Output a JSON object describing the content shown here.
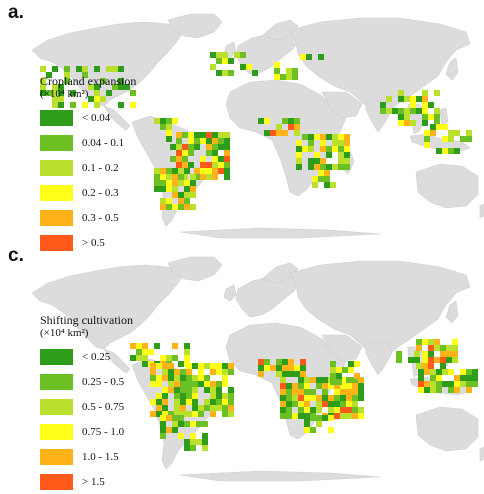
{
  "panels": [
    {
      "letter": "a.",
      "legend": {
        "title": "Cropland expansion",
        "units": "(×10⁴ km²)",
        "items": [
          {
            "label": "< 0.04",
            "color": "#2e9e1a"
          },
          {
            "label": "0.04 - 0.1",
            "color": "#6cc024"
          },
          {
            "label": "0.1 - 0.2",
            "color": "#b8e02c"
          },
          {
            "label": "0.2 - 0.3",
            "color": "#ffff1a"
          },
          {
            "label": "0.3 - 0.5",
            "color": "#ffb319"
          },
          {
            "label": "> 0.5",
            "color": "#ff5a1a"
          }
        ]
      }
    },
    {
      "letter": "c.",
      "legend": {
        "title": "Shifting cultivation",
        "units": "(×10⁴ km²)",
        "items": [
          {
            "label": "< 0.25",
            "color": "#2e9e1a"
          },
          {
            "label": "0.25 - 0.5",
            "color": "#6cc024"
          },
          {
            "label": "0.5 - 0.75",
            "color": "#b8e02c"
          },
          {
            "label": "0.75 - 1.0",
            "color": "#ffff1a"
          },
          {
            "label": "1.0 - 1.5",
            "color": "#ffb319"
          },
          {
            "label": "> 1.5",
            "color": "#ff5a1a"
          }
        ]
      }
    }
  ],
  "land_color": "#dcdcdc"
}
